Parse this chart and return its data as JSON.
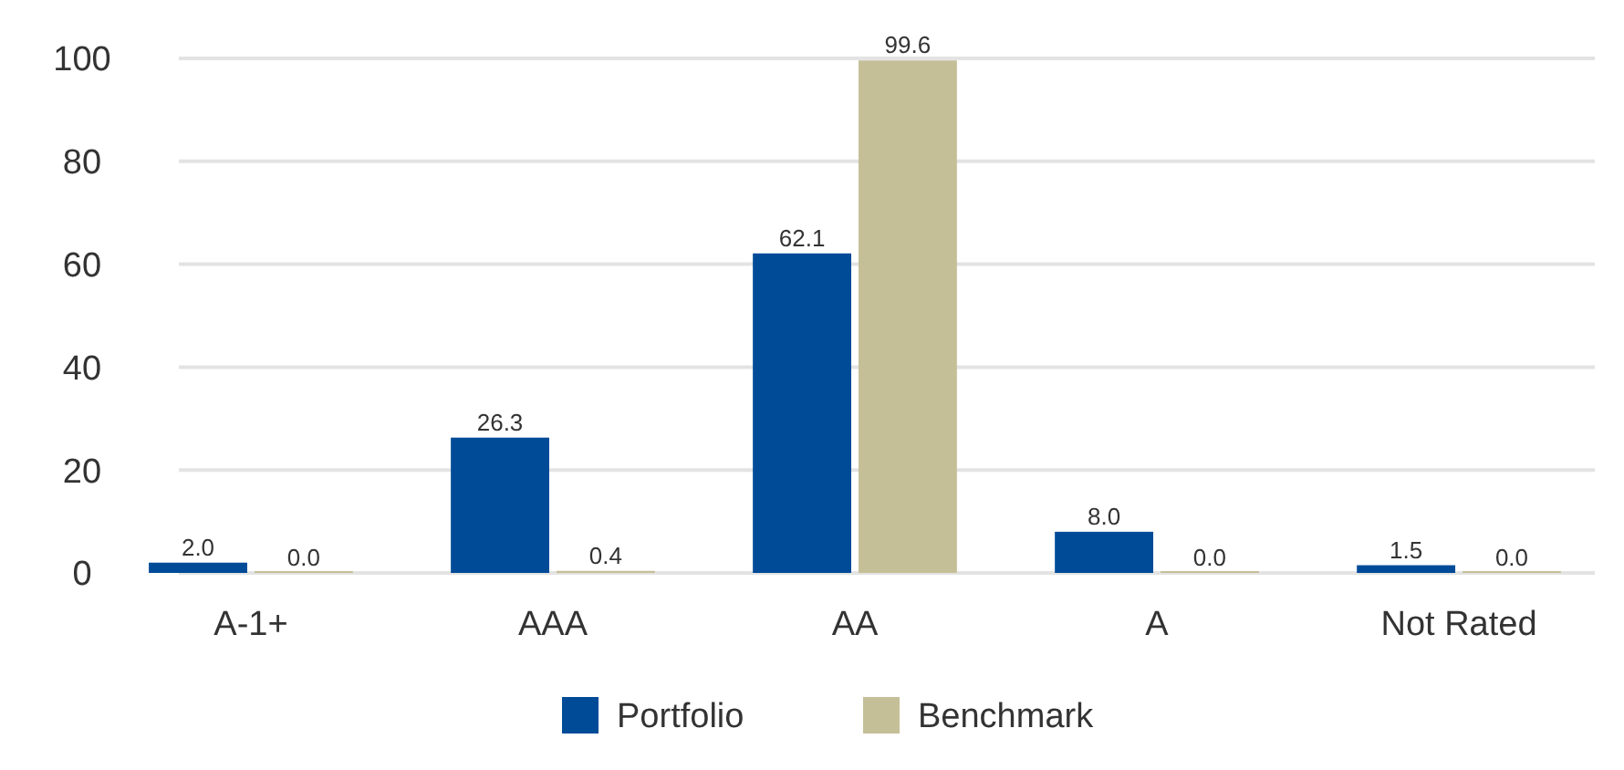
{
  "chart_data": {
    "type": "bar",
    "categories": [
      "A-1+",
      "AAA",
      "AA",
      "A",
      "Not Rated"
    ],
    "series": [
      {
        "name": "Portfolio",
        "color": "#004b98",
        "values": [
          2.0,
          26.3,
          62.1,
          8.0,
          1.5
        ],
        "value_labels": [
          "2.0",
          "26.3",
          "62.1",
          "8.0",
          "1.5"
        ]
      },
      {
        "name": "Benchmark",
        "color": "#c5bf98",
        "values": [
          0.0,
          0.4,
          99.6,
          0.0,
          0.0
        ],
        "value_labels": [
          "0.0",
          "0.4",
          "99.6",
          "0.0",
          "0.0"
        ]
      }
    ],
    "ylim": [
      0,
      100
    ],
    "yticks": [
      0,
      20,
      40,
      60,
      80,
      100
    ],
    "grid": "y",
    "legend": "bottom"
  }
}
